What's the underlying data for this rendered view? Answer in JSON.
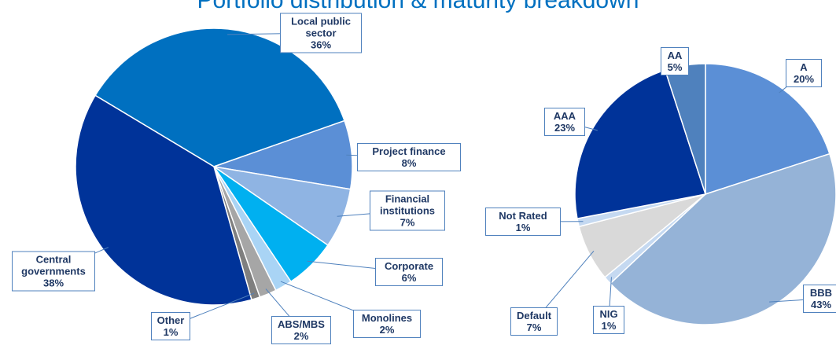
{
  "title": "Portfolio distribution & maturity breakdown",
  "chart_data": [
    {
      "type": "pie",
      "categories": [
        "Local public sector",
        "Project finance",
        "Financial institutions",
        "Corporate",
        "Monolines",
        "ABS/MBS",
        "Other",
        "Central governments"
      ],
      "values": [
        36,
        8,
        7,
        6,
        2,
        2,
        1,
        38
      ],
      "value_labels": [
        "36%",
        "8%",
        "7%",
        "6%",
        "2%",
        "2%",
        "1%",
        "38%"
      ],
      "colors": [
        "#0070c0",
        "#5b8fd6",
        "#8fb4e3",
        "#00b0f0",
        "#a9d4f5",
        "#a6a6a6",
        "#7f7f7f",
        "#003399"
      ]
    },
    {
      "type": "pie",
      "categories": [
        "A",
        "BBB",
        "NIG",
        "Default",
        "Not Rated",
        "AAA",
        "AA"
      ],
      "values": [
        20,
        43,
        1,
        7,
        1,
        23,
        5
      ],
      "value_labels": [
        "20%",
        "43%",
        "1%",
        "7%",
        "1%",
        "23%",
        "5%"
      ],
      "colors": [
        "#5b8fd6",
        "#95b3d7",
        "#c5d9f1",
        "#d9d9d9",
        "#c5d9f1",
        "#003399",
        "#4f81bd"
      ]
    }
  ]
}
